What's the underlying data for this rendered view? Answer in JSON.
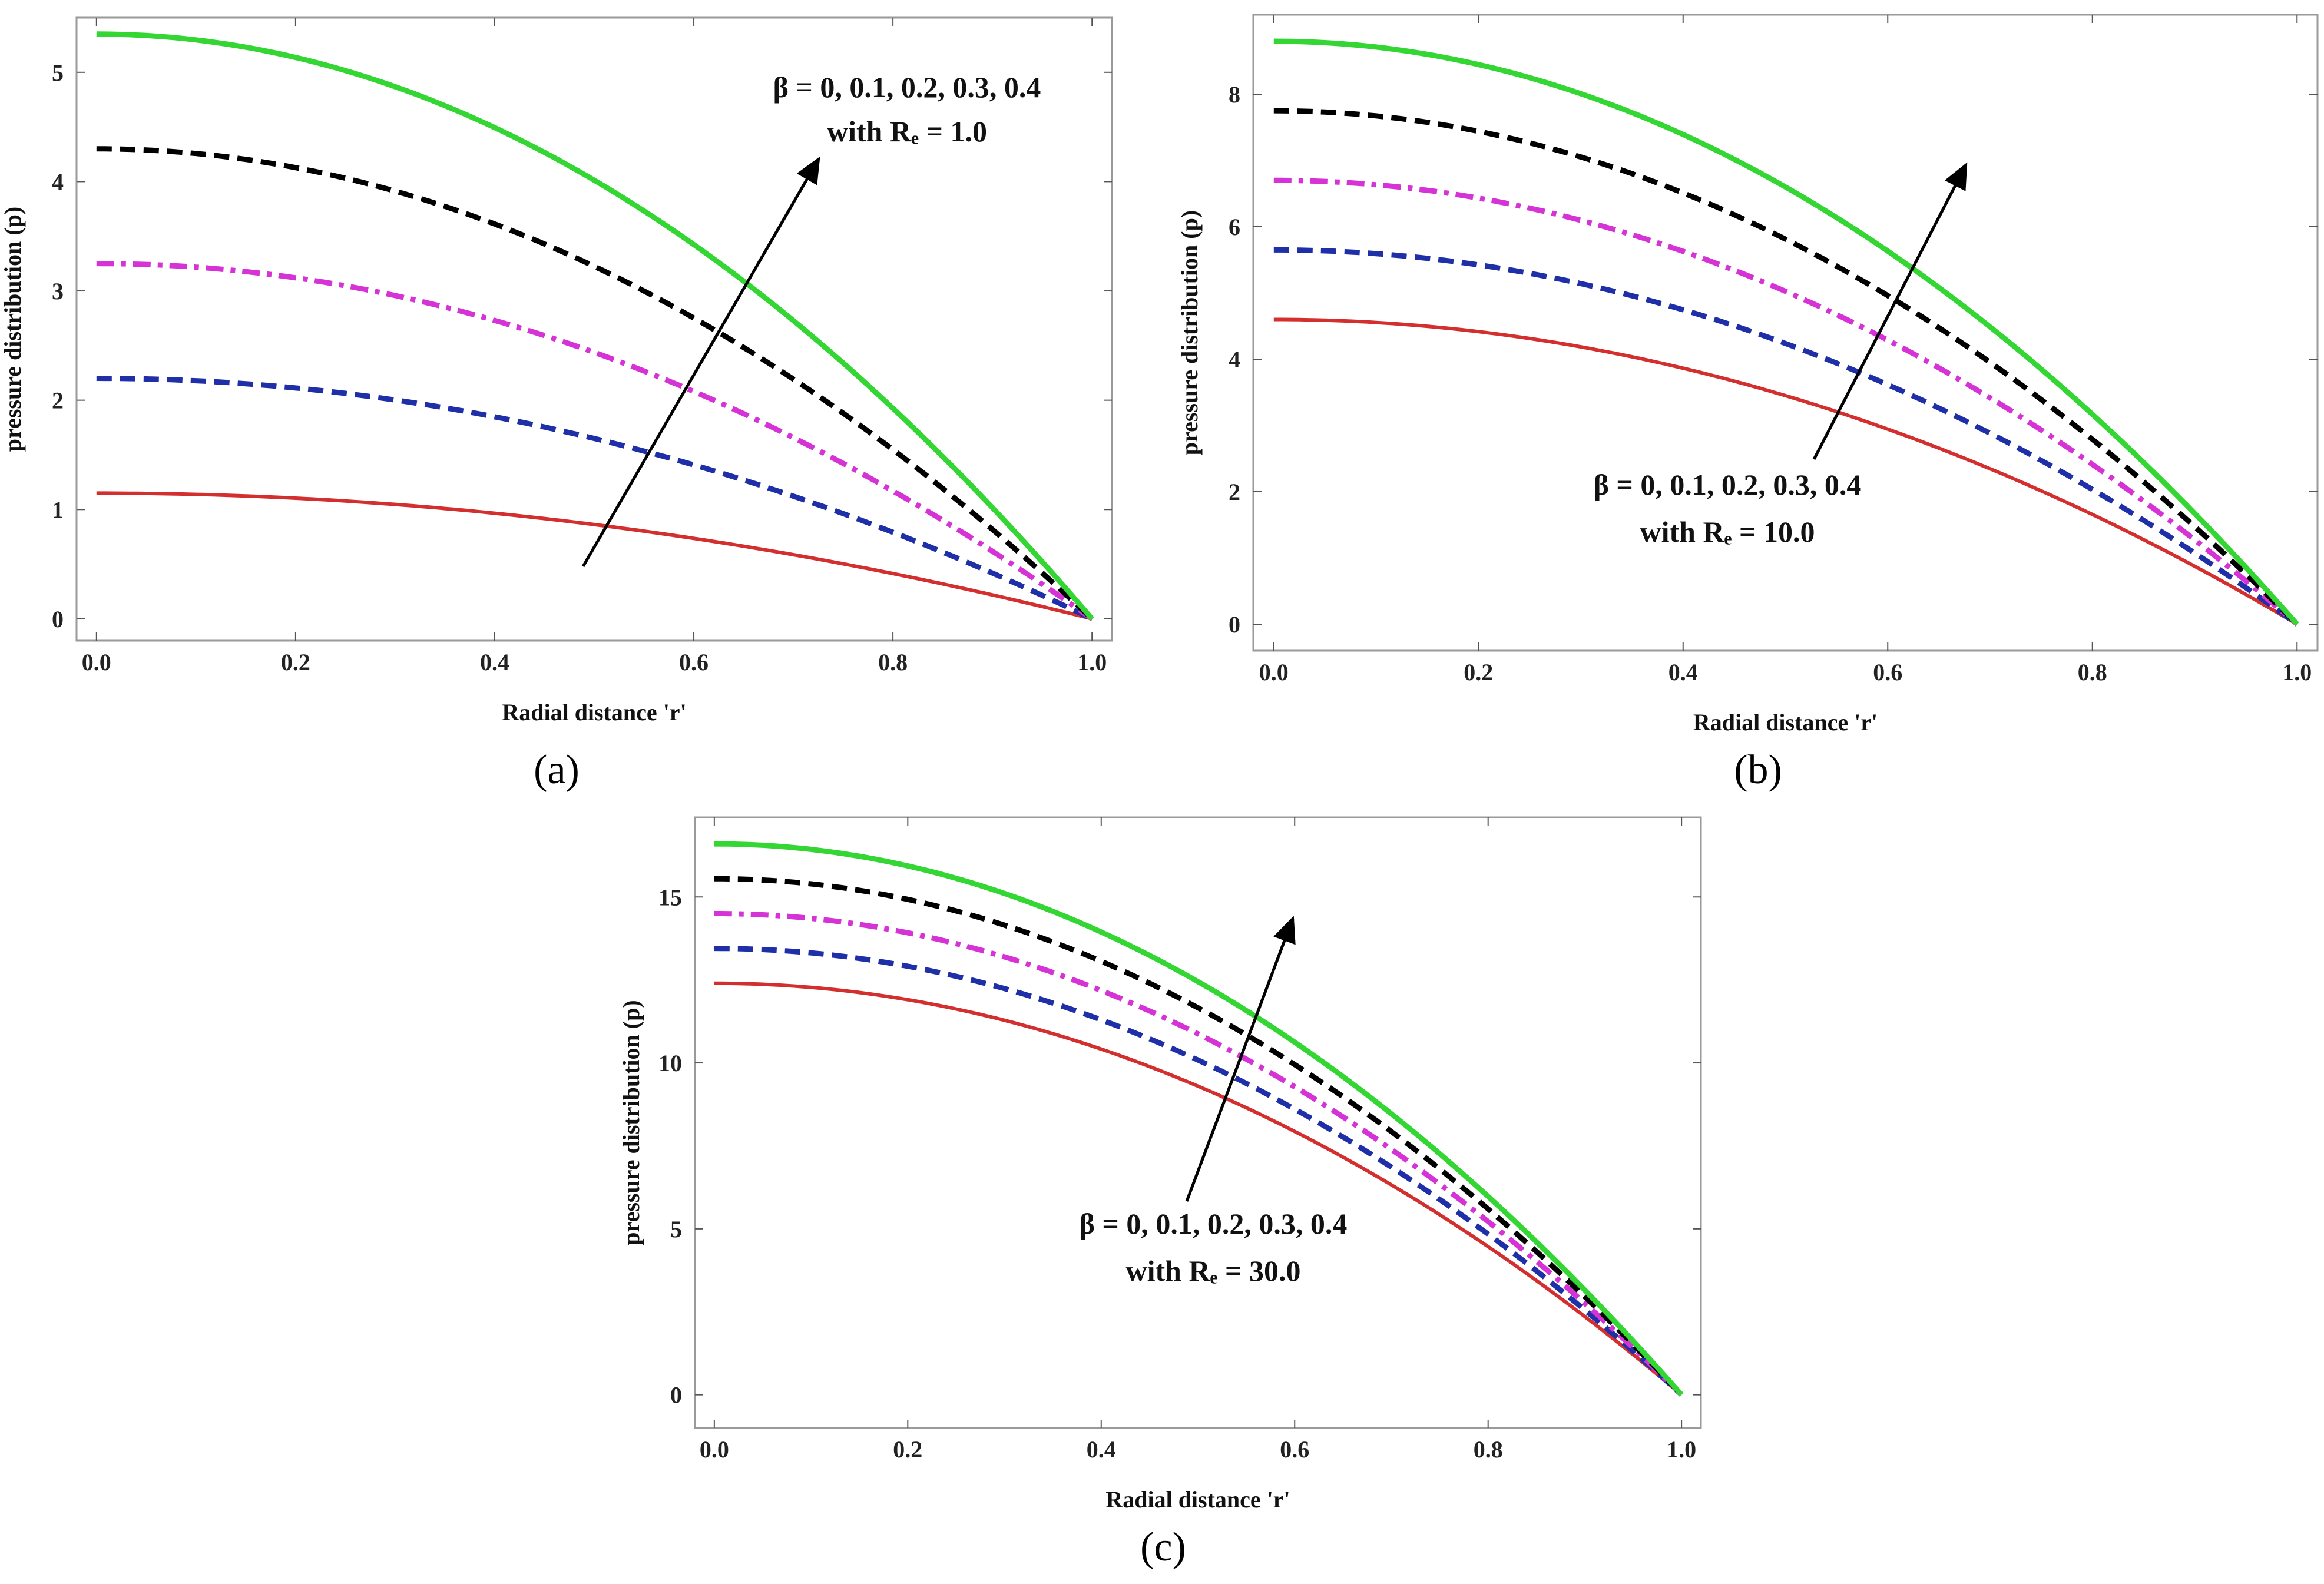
{
  "figure": {
    "panels": [
      "(a)",
      "(b)",
      "(c)"
    ]
  },
  "colors": {
    "beta_0": "#d42f2f",
    "beta_0.1": "#1f2fa8",
    "beta_0.2": "#d633d6",
    "beta_0.3": "#000000",
    "beta_0.4": "#33d633",
    "arrow": "#000000",
    "frame": "#9a9a9a"
  },
  "chart_data": [
    {
      "type": "line",
      "panel": "(a)",
      "xlabel": "Radial distance 'r'",
      "ylabel": "pressure distribution (p)",
      "xlim": [
        -0.02,
        1.02
      ],
      "ylim": [
        -0.2,
        5.5
      ],
      "xticks": [
        "0.0",
        "0.2",
        "0.4",
        "0.6",
        "0.8",
        "1.0"
      ],
      "yticks": [
        "0",
        "1",
        "2",
        "3",
        "4",
        "5"
      ],
      "annotation_line1": "β = 0,  0.1,  0.2,  0.3,  0.4",
      "annotation_line2": "with Rₑ = 1.0",
      "series": [
        {
          "name": "β = 0",
          "style": "solid",
          "p0": 1.15
        },
        {
          "name": "β = 0.1",
          "style": "dashed",
          "p0": 2.2
        },
        {
          "name": "β = 0.2",
          "style": "dashdot",
          "p0": 3.25
        },
        {
          "name": "β = 0.3",
          "style": "dashed",
          "p0": 4.3
        },
        {
          "name": "β = 0.4",
          "style": "solid",
          "p0": 5.35
        }
      ],
      "curve": "p0*(1 - r^2)"
    },
    {
      "type": "line",
      "panel": "(b)",
      "xlabel": "Radial distance 'r'",
      "ylabel": "pressure distribution (p)",
      "xlim": [
        -0.02,
        1.02
      ],
      "ylim": [
        -0.4,
        9.2
      ],
      "xticks": [
        "0.0",
        "0.2",
        "0.4",
        "0.6",
        "0.8",
        "1.0"
      ],
      "yticks": [
        "0",
        "2",
        "4",
        "6",
        "8"
      ],
      "annotation_line1": "β = 0,  0.1,  0.2,  0.3,  0.4",
      "annotation_line2": "with Rₑ = 10.0",
      "series": [
        {
          "name": "β = 0",
          "style": "solid",
          "p0": 4.6
        },
        {
          "name": "β = 0.1",
          "style": "dashed",
          "p0": 5.65
        },
        {
          "name": "β = 0.2",
          "style": "dashdot",
          "p0": 6.7
        },
        {
          "name": "β = 0.3",
          "style": "dashed",
          "p0": 7.75
        },
        {
          "name": "β = 0.4",
          "style": "solid",
          "p0": 8.8
        }
      ],
      "curve": "p0*(1 - r^2)"
    },
    {
      "type": "line",
      "panel": "(c)",
      "xlabel": "Radial distance 'r'",
      "ylabel": "pressure distribution (p)",
      "xlim": [
        -0.02,
        1.02
      ],
      "ylim": [
        -1.0,
        17.4
      ],
      "xticks": [
        "0.0",
        "0.2",
        "0.4",
        "0.6",
        "0.8",
        "1.0"
      ],
      "yticks": [
        "0",
        "5",
        "10",
        "15"
      ],
      "annotation_line1": "β = 0,  0.1,  0.2,  0.3,  0.4",
      "annotation_line2": "with Rₑ = 30.0",
      "series": [
        {
          "name": "β = 0",
          "style": "solid",
          "p0": 12.4
        },
        {
          "name": "β = 0.1",
          "style": "dashed",
          "p0": 13.45
        },
        {
          "name": "β = 0.2",
          "style": "dashdot",
          "p0": 14.5
        },
        {
          "name": "β = 0.3",
          "style": "dashed",
          "p0": 15.55
        },
        {
          "name": "β = 0.4",
          "style": "solid",
          "p0": 16.6
        }
      ],
      "curve": "p0*(1 - r^2)"
    }
  ]
}
